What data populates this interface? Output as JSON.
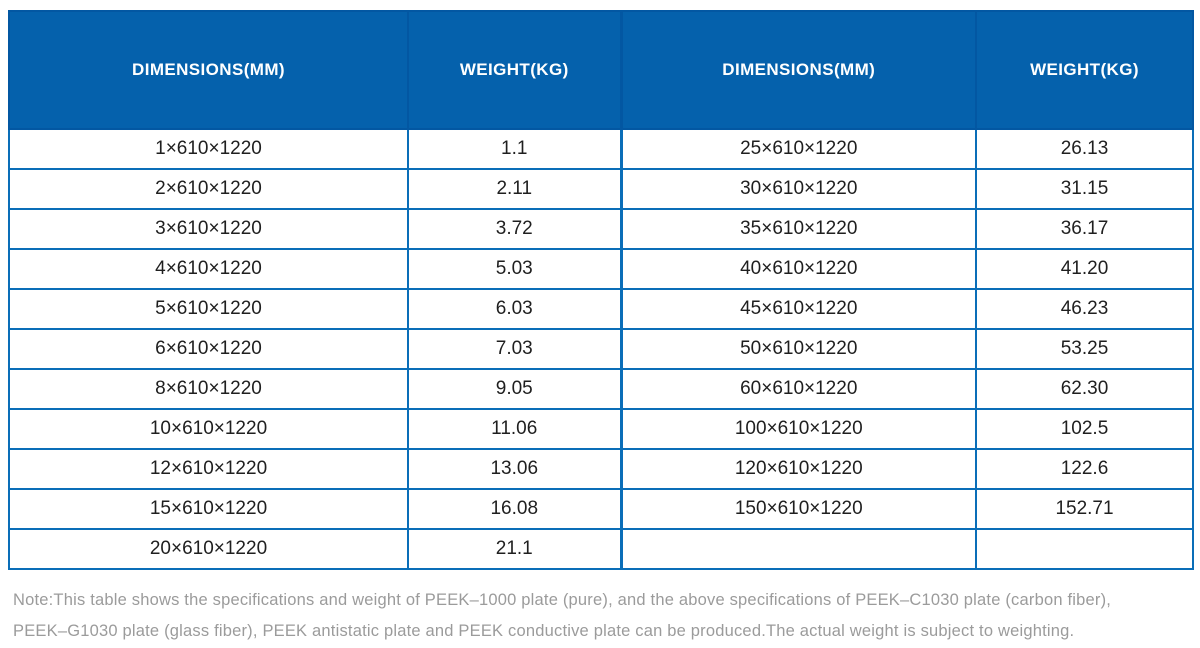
{
  "table": {
    "headers": [
      "DIMENSIONS(MM)",
      "WEIGHT(KG)",
      "DIMENSIONS(MM)",
      "WEIGHT(KG)"
    ],
    "rows": [
      [
        "1×610×1220",
        "1.1",
        "25×610×1220",
        "26.13"
      ],
      [
        "2×610×1220",
        "2.11",
        "30×610×1220",
        "31.15"
      ],
      [
        "3×610×1220",
        "3.72",
        "35×610×1220",
        "36.17"
      ],
      [
        "4×610×1220",
        "5.03",
        "40×610×1220",
        "41.20"
      ],
      [
        "5×610×1220",
        "6.03",
        "45×610×1220",
        "46.23"
      ],
      [
        "6×610×1220",
        "7.03",
        "50×610×1220",
        "53.25"
      ],
      [
        "8×610×1220",
        "9.05",
        "60×610×1220",
        "62.30"
      ],
      [
        "10×610×1220",
        "11.06",
        "100×610×1220",
        "102.5"
      ],
      [
        "12×610×1220",
        "13.06",
        "120×610×1220",
        "122.6"
      ],
      [
        "15×610×1220",
        "16.08",
        "150×610×1220",
        "152.71"
      ],
      [
        "20×610×1220",
        "21.1",
        "",
        ""
      ]
    ]
  },
  "note": {
    "line1": "Note:This table shows the specifications and weight of PEEK–1000 plate (pure), and the above specifications of PEEK–C1030 plate (carbon fiber),",
    "line2": "PEEK–G1030 plate (glass fiber), PEEK antistatic plate and PEEK conductive plate can be produced.The actual weight is subject to weighting."
  },
  "colors": {
    "header_bg": "#0561ac",
    "header_border": "#0357a2",
    "grid_border": "#0a6eb8",
    "cell_text": "#1f1f1f",
    "note_text": "#9b9b9b"
  }
}
